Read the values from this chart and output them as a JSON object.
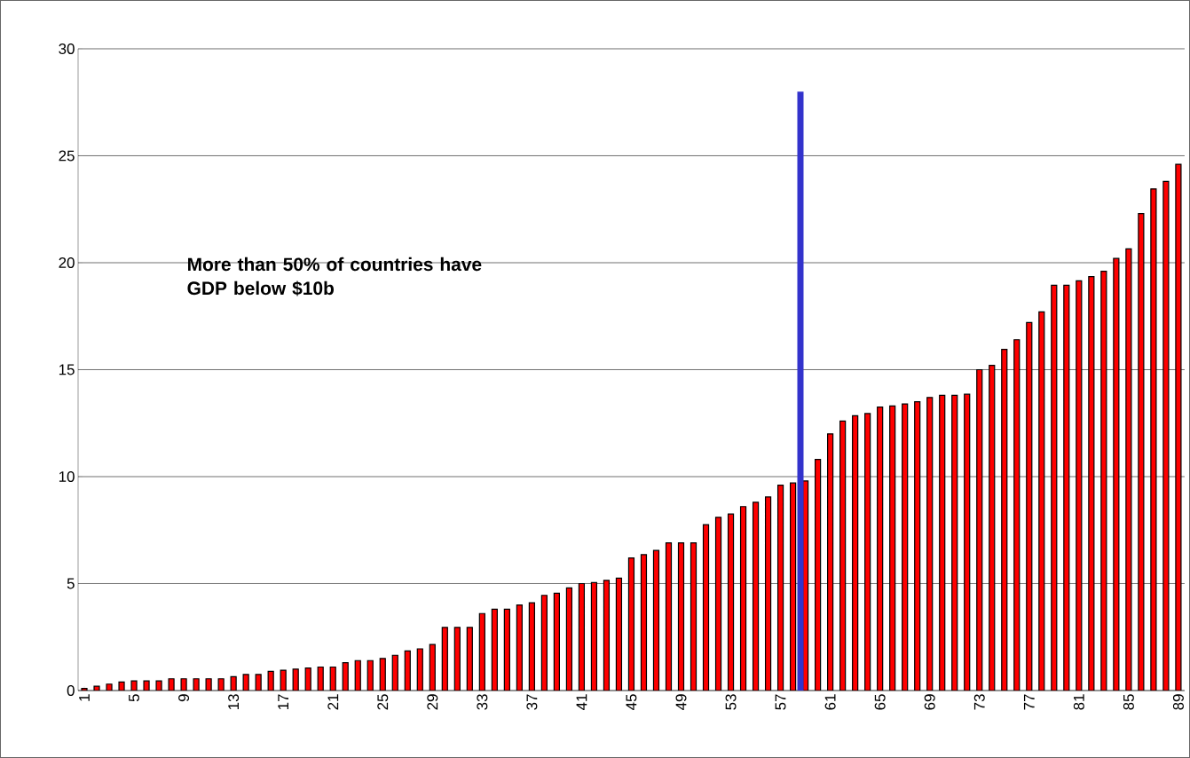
{
  "chart_data": {
    "type": "bar",
    "categories": [
      "1",
      null,
      null,
      null,
      "5",
      null,
      null,
      null,
      "9",
      null,
      null,
      null,
      "13",
      null,
      null,
      null,
      "17",
      null,
      null,
      null,
      "21",
      null,
      null,
      null,
      "25",
      null,
      null,
      null,
      "29",
      null,
      null,
      null,
      "33",
      null,
      null,
      null,
      "37",
      null,
      null,
      null,
      "41",
      null,
      null,
      null,
      "45",
      null,
      null,
      null,
      "49",
      null,
      null,
      null,
      "53",
      null,
      null,
      null,
      "57",
      null,
      null,
      null,
      "61",
      null,
      null,
      null,
      "65",
      null,
      null,
      null,
      "69",
      null,
      null,
      null,
      "73",
      null,
      null,
      null,
      "77",
      null,
      null,
      null,
      "81",
      null,
      null,
      null,
      "85",
      null,
      null,
      null,
      "89"
    ],
    "values": [
      0.1,
      0.2,
      0.3,
      0.4,
      0.45,
      0.45,
      0.45,
      0.55,
      0.55,
      0.55,
      0.55,
      0.55,
      0.65,
      0.75,
      0.75,
      0.9,
      0.95,
      1.0,
      1.05,
      1.1,
      1.1,
      1.3,
      1.4,
      1.4,
      1.5,
      1.65,
      1.85,
      1.95,
      2.15,
      2.95,
      2.95,
      2.95,
      3.6,
      3.8,
      3.8,
      4.0,
      4.1,
      4.45,
      4.55,
      4.8,
      5.0,
      5.05,
      5.15,
      5.25,
      6.2,
      6.35,
      6.55,
      6.9,
      6.9,
      6.9,
      7.75,
      8.1,
      8.25,
      8.6,
      8.8,
      9.05,
      9.6,
      9.7,
      9.8,
      10.8,
      12.0,
      12.6,
      12.85,
      12.95,
      13.25,
      13.3,
      13.4,
      13.5,
      13.7,
      13.8,
      13.8,
      13.85,
      15.0,
      15.2,
      15.95,
      16.4,
      17.2,
      17.7,
      18.95,
      18.95,
      19.15,
      19.35,
      19.6,
      20.2,
      20.65,
      22.3,
      23.45,
      23.8,
      24.6
    ],
    "color": "#ff0000",
    "ylim": [
      0,
      30
    ],
    "yticks": [
      0,
      5,
      10,
      15,
      20,
      25,
      30
    ],
    "grid": "y",
    "annotations": [
      "More than 50% of countries have GDP below $10b"
    ]
  }
}
